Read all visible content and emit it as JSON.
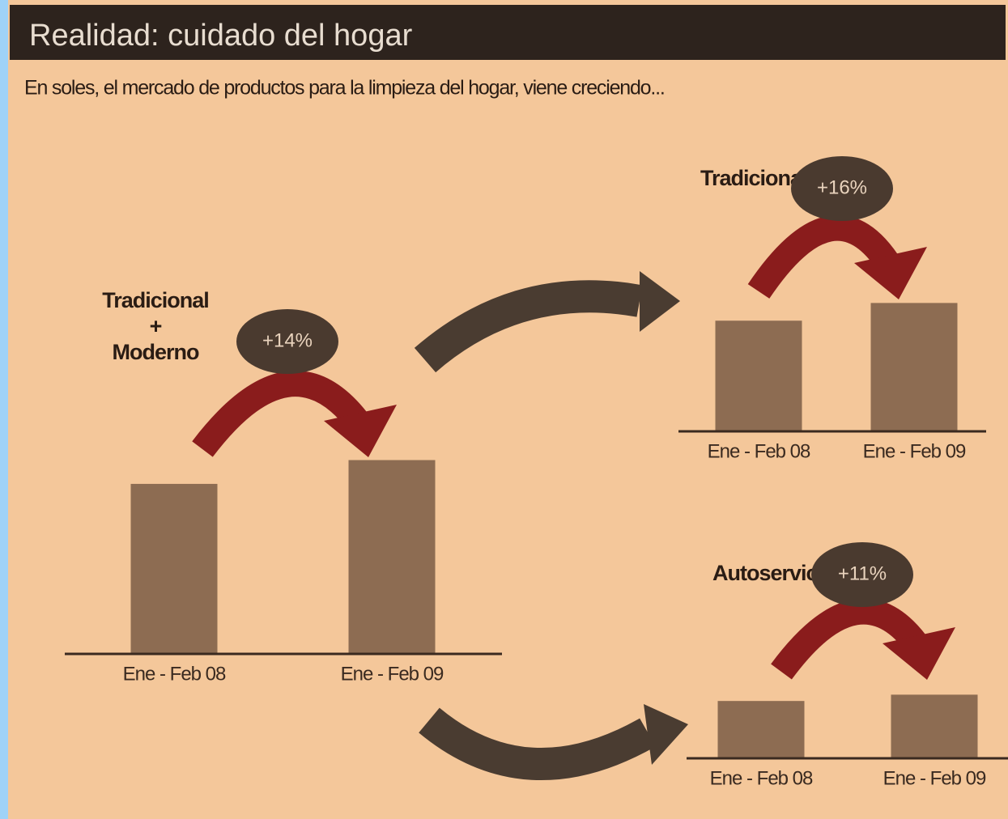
{
  "header": {
    "title": "Realidad: cuidado del hogar",
    "subtitle": "En soles, el mercado de productos para la limpieza del hogar, viene creciendo..."
  },
  "chart_data": [
    {
      "type": "bar",
      "title": [
        "Tradicional",
        "+",
        "Moderno"
      ],
      "annotation": "+14%",
      "categories": [
        "Ene - Feb 08",
        "Ene - Feb 09"
      ],
      "values": [
        100,
        114
      ],
      "color": "#8d6c52",
      "ylim": [
        0,
        119
      ]
    },
    {
      "type": "bar",
      "title": [
        "Tradicional"
      ],
      "annotation": "+16%",
      "categories": [
        "Ene - Feb 08",
        "Ene - Feb 09"
      ],
      "values": [
        100,
        116
      ],
      "color": "#8d6c52",
      "ylim": [
        0,
        117
      ]
    },
    {
      "type": "bar",
      "title": [
        "Autoservicios"
      ],
      "annotation": "+11%",
      "categories": [
        "Ene - Feb 08",
        "Ene - Feb 09"
      ],
      "values": [
        100,
        111
      ],
      "color": "#8d6c52",
      "ylim": [
        0,
        120
      ]
    }
  ]
}
